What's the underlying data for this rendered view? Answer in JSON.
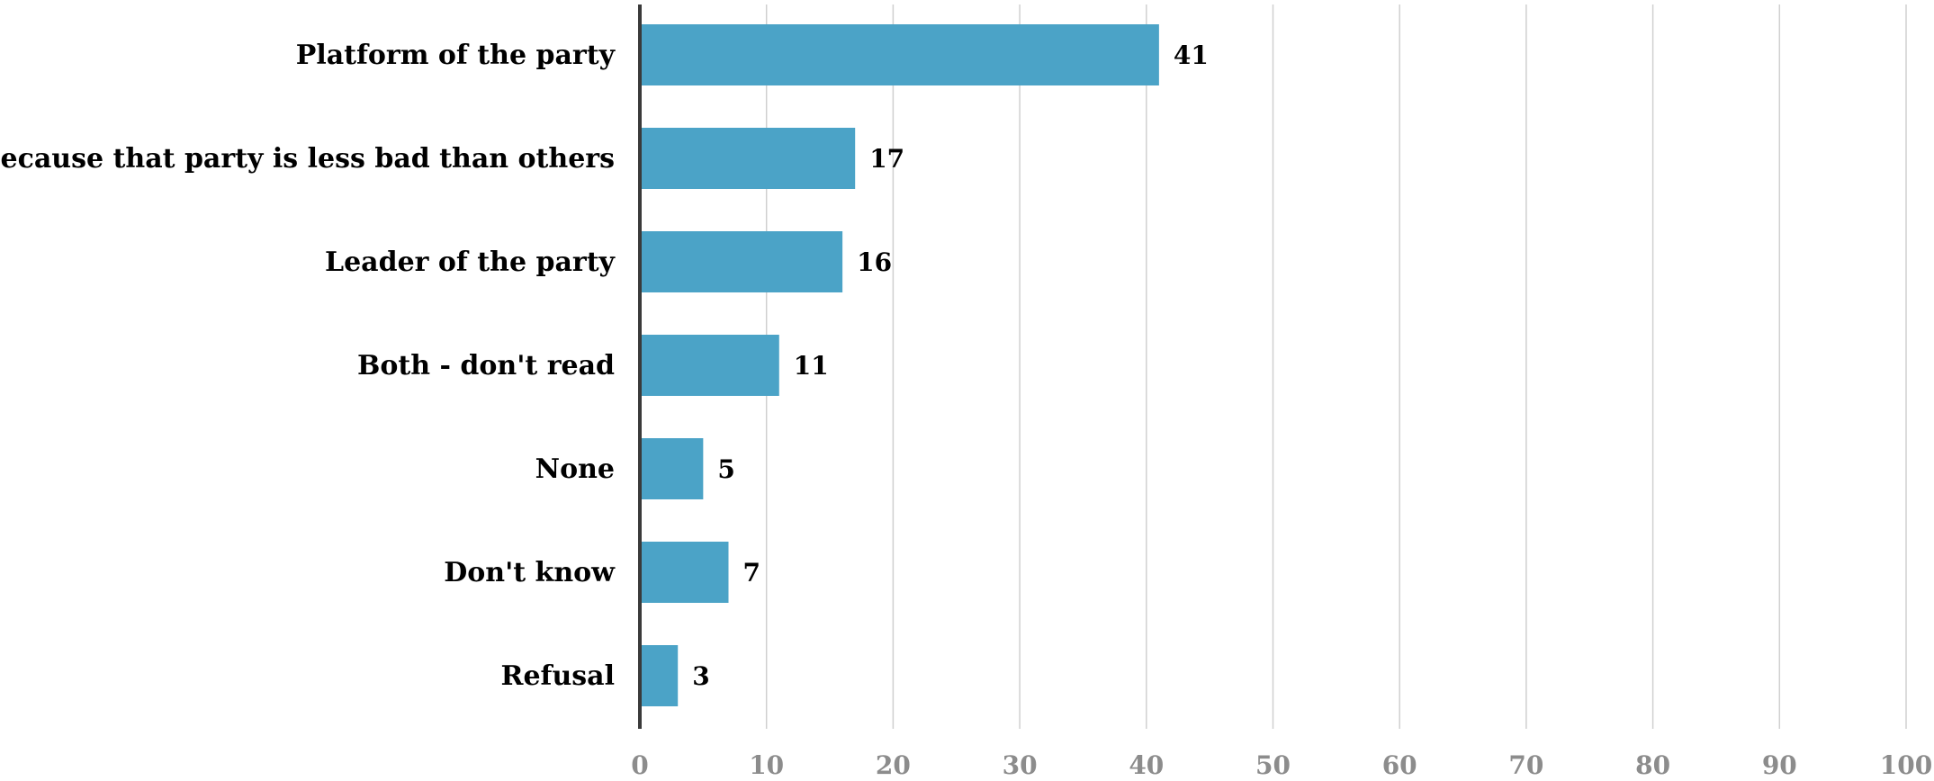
{
  "chart_data": {
    "type": "bar",
    "orientation": "horizontal",
    "title": "",
    "xlabel": "",
    "ylabel": "",
    "categories": [
      "Platform of the party",
      "Because that party is less bad than others",
      "Leader of the party",
      "Both - don't read",
      "None",
      "Don't know",
      "Refusal"
    ],
    "values": [
      41,
      17,
      16,
      11,
      5,
      7,
      3
    ],
    "data_labels": [
      "41",
      "17",
      "16",
      "11",
      "5",
      "7",
      "3"
    ],
    "xlim": [
      0,
      100
    ],
    "x_ticks": [
      0,
      10,
      20,
      30,
      40,
      50,
      60,
      70,
      80,
      90,
      100
    ],
    "x_tick_labels": [
      "0",
      "10",
      "20",
      "30",
      "40",
      "50",
      "60",
      "70",
      "80",
      "90",
      "100"
    ],
    "grid": "vertical",
    "legend": "none",
    "colors": {
      "bar": "#4ba3c7",
      "grid": "#d0d0d0",
      "axis": "#3a3a3a",
      "tick_text": "#8c8c8c",
      "label_text": "#000000"
    }
  }
}
